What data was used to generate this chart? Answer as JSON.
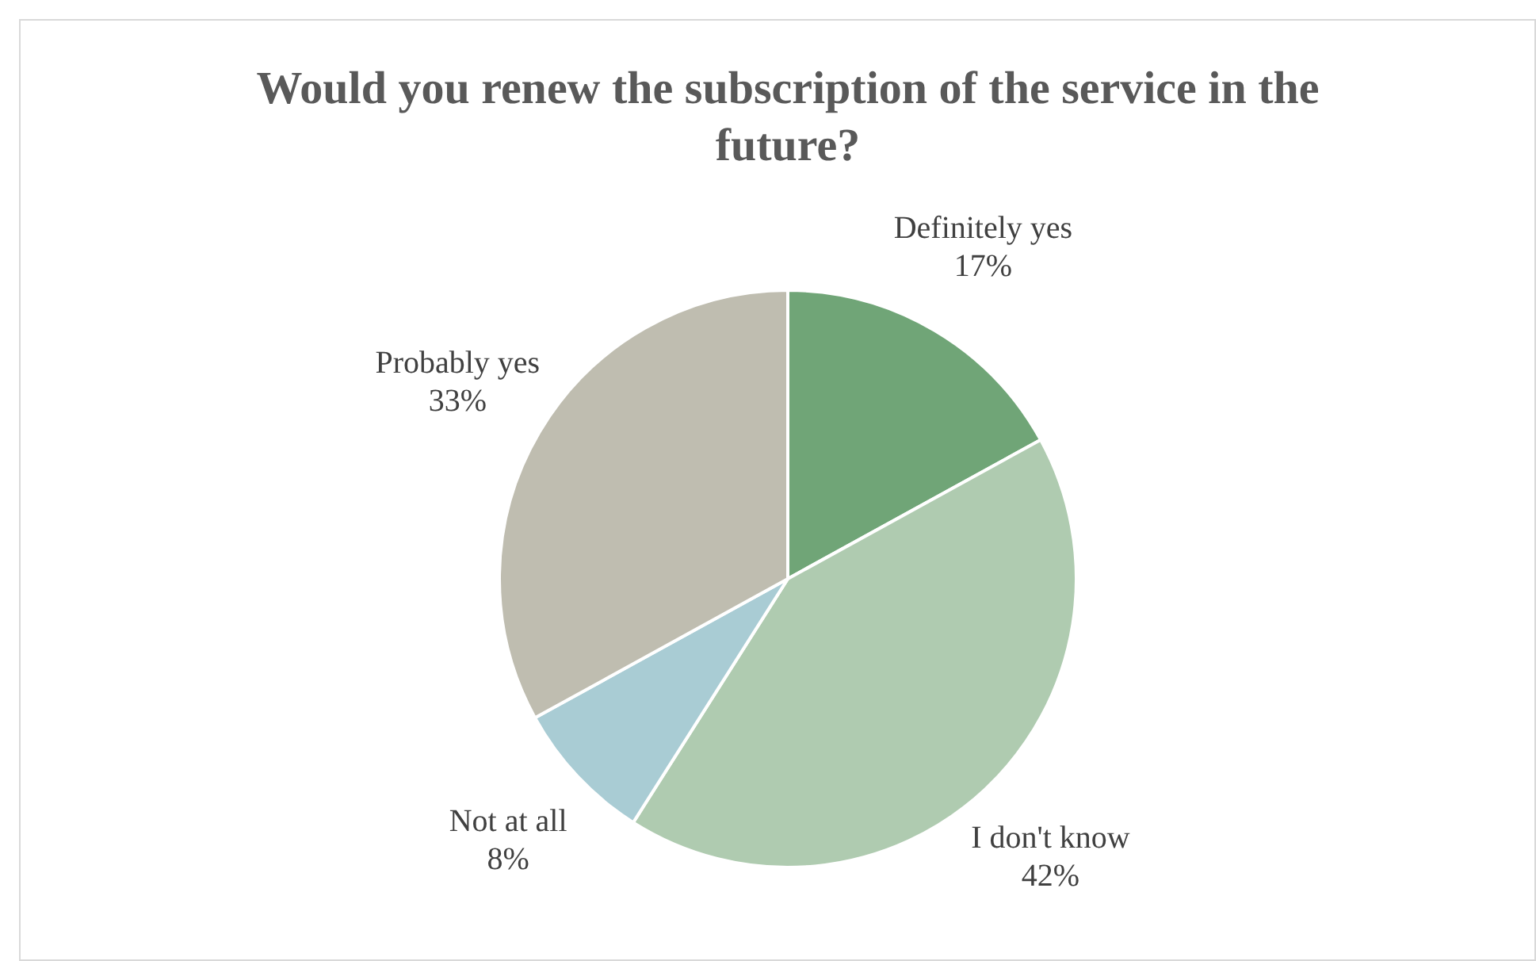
{
  "chart_data": {
    "type": "pie",
    "title": "Would you renew the subscription of the service in the future?",
    "categories": [
      "Definitely yes",
      "I don't know",
      "Not at all",
      "Probably yes"
    ],
    "values": [
      17,
      42,
      8,
      33
    ],
    "value_labels": [
      "17%",
      "42%",
      "8%",
      "33%"
    ],
    "colors": [
      "#70a577",
      "#afcbb0",
      "#a9ccd4",
      "#bfbdb0"
    ],
    "legend": false
  }
}
